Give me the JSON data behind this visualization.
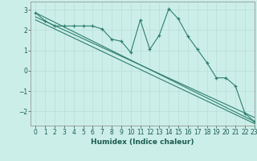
{
  "xlabel": "Humidex (Indice chaleur)",
  "background_color": "#cceee8",
  "grid_color": "#b8ddd8",
  "line_color": "#2d7f6f",
  "xlim": [
    -0.5,
    23
  ],
  "ylim": [
    -2.7,
    3.4
  ],
  "xticks": [
    0,
    1,
    2,
    3,
    4,
    5,
    6,
    7,
    8,
    9,
    10,
    11,
    12,
    13,
    14,
    15,
    16,
    17,
    18,
    19,
    20,
    21,
    22,
    23
  ],
  "yticks": [
    -2,
    -1,
    0,
    1,
    2,
    3
  ],
  "line1_x": [
    0,
    1,
    2,
    3,
    4,
    5,
    6,
    7,
    8,
    9,
    10,
    11,
    12,
    13,
    14,
    15,
    16,
    17,
    18,
    19,
    20,
    21,
    22,
    23
  ],
  "line1_y": [
    2.85,
    2.45,
    2.2,
    2.2,
    2.2,
    2.2,
    2.2,
    2.05,
    1.55,
    1.45,
    0.9,
    2.5,
    1.05,
    1.75,
    3.05,
    2.55,
    1.7,
    1.05,
    0.4,
    -0.35,
    -0.35,
    -0.75,
    -2.1,
    -2.5
  ],
  "line2_x": [
    0,
    23
  ],
  "line2_y": [
    2.85,
    -2.5
  ],
  "line3_x": [
    0,
    23
  ],
  "line3_y": [
    2.65,
    -2.3
  ],
  "line4_x": [
    0,
    23
  ],
  "line4_y": [
    2.5,
    -2.6
  ]
}
